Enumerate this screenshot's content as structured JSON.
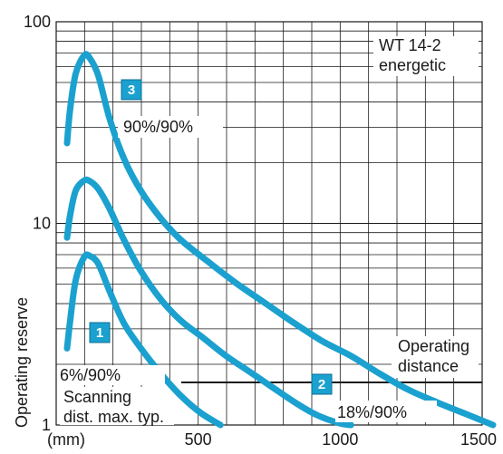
{
  "chart_data": {
    "type": "line",
    "title": "WT 14-2 energetic",
    "title_lines": [
      "WT 14-2",
      "energetic"
    ],
    "xlabel": "(mm)",
    "ylabel": "Operating reserve",
    "x_scale": "linear",
    "y_scale": "log",
    "xlim": [
      0,
      1500
    ],
    "ylim": [
      1,
      100
    ],
    "x_ticks": [
      {
        "value": 500,
        "label": "500"
      },
      {
        "value": 1000,
        "label": "1000"
      },
      {
        "value": 1500,
        "label": "1500"
      }
    ],
    "y_ticks": [
      {
        "value": 1,
        "label": "1"
      },
      {
        "value": 10,
        "label": "10"
      },
      {
        "value": 100,
        "label": "100"
      }
    ],
    "grid": true,
    "line_color": "#1ba1cf",
    "series": [
      {
        "name": "6%/90%",
        "badge": "1",
        "x": [
          0,
          10,
          30,
          60,
          80,
          110,
          150,
          200,
          260,
          330,
          400,
          470,
          540
        ],
        "y": [
          2.4,
          3.2,
          5.2,
          6.8,
          6.9,
          6.3,
          4.6,
          3.2,
          2.4,
          1.8,
          1.4,
          1.15,
          1.0
        ]
      },
      {
        "name": "18%/90%",
        "badge": "2",
        "x": [
          0,
          10,
          30,
          60,
          80,
          110,
          150,
          200,
          260,
          330,
          400,
          480,
          560,
          640,
          720,
          800,
          880,
          960,
          1000
        ],
        "y": [
          8.5,
          10.8,
          14.5,
          16.3,
          16.2,
          14.8,
          11.8,
          8.3,
          5.8,
          4.2,
          3.3,
          2.7,
          2.2,
          1.85,
          1.55,
          1.3,
          1.12,
          1.02,
          1.0
        ]
      },
      {
        "name": "90%/90%",
        "badge": "3",
        "x": [
          0,
          10,
          30,
          60,
          80,
          110,
          150,
          200,
          260,
          330,
          400,
          500,
          600,
          700,
          800,
          900,
          1000,
          1100,
          1200,
          1300,
          1400,
          1500
        ],
        "y": [
          25,
          36,
          55,
          68,
          66,
          54,
          33,
          21,
          14.5,
          10.6,
          8.3,
          6.4,
          5.0,
          4.0,
          3.2,
          2.6,
          2.2,
          1.8,
          1.5,
          1.3,
          1.14,
          1.0
        ]
      }
    ],
    "operating_distance_label": [
      "Operating",
      "distance"
    ],
    "scanning_distance_label": [
      "Scanning",
      "dist. max. typ."
    ]
  }
}
